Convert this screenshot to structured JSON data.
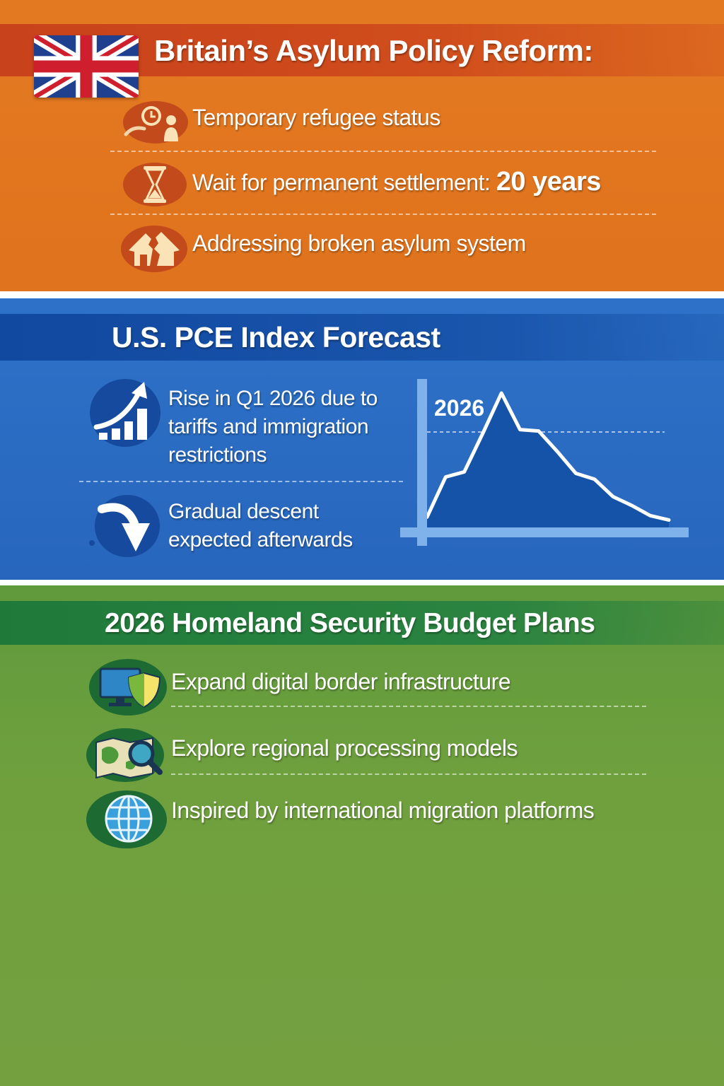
{
  "asylum": {
    "title": "Britain’s Asylum Policy Reform:",
    "items": [
      {
        "text": "Temporary refugee status",
        "icon": "clock-person-icon"
      },
      {
        "text": "Wait for permanent settlement:",
        "highlight": "20 years",
        "icon": "hourglass-icon"
      },
      {
        "text": "Addressing broken asylum system",
        "icon": "broken-house-icon"
      }
    ]
  },
  "pce": {
    "title": "U.S. PCE Index Forecast",
    "items": [
      {
        "lines": [
          "Rise in Q1 2026 due to",
          "tariffs and immigration",
          "restrictions"
        ],
        "icon": "rising-bars-arrow-icon"
      },
      {
        "lines": [
          "Gradual descent",
          "expected afterwards"
        ],
        "icon": "down-arrow-icon"
      }
    ]
  },
  "chart_data": {
    "type": "area",
    "annotation": "2026",
    "x": [
      0,
      1,
      2,
      3,
      4,
      5,
      6,
      7,
      8,
      9,
      10,
      11,
      12,
      13
    ],
    "values": [
      0.2,
      0.75,
      0.82,
      1.35,
      1.9,
      1.4,
      1.38,
      1.1,
      0.8,
      0.72,
      0.48,
      0.36,
      0.22,
      0.16
    ],
    "xlabel": "",
    "ylabel": "",
    "grid": false
  },
  "homeland": {
    "title": "2026 Homeland Security Budget Plans",
    "items": [
      {
        "text": "Expand digital border infrastructure",
        "icon": "monitor-shield-icon"
      },
      {
        "text": "Explore regional processing models",
        "icon": "map-magnifier-icon"
      },
      {
        "text": "Inspired by international migration platforms",
        "icon": "globe-icon"
      }
    ]
  },
  "colors": {
    "orange": "#e37a22",
    "blue": "#2d72c8",
    "green": "#70a03e"
  }
}
